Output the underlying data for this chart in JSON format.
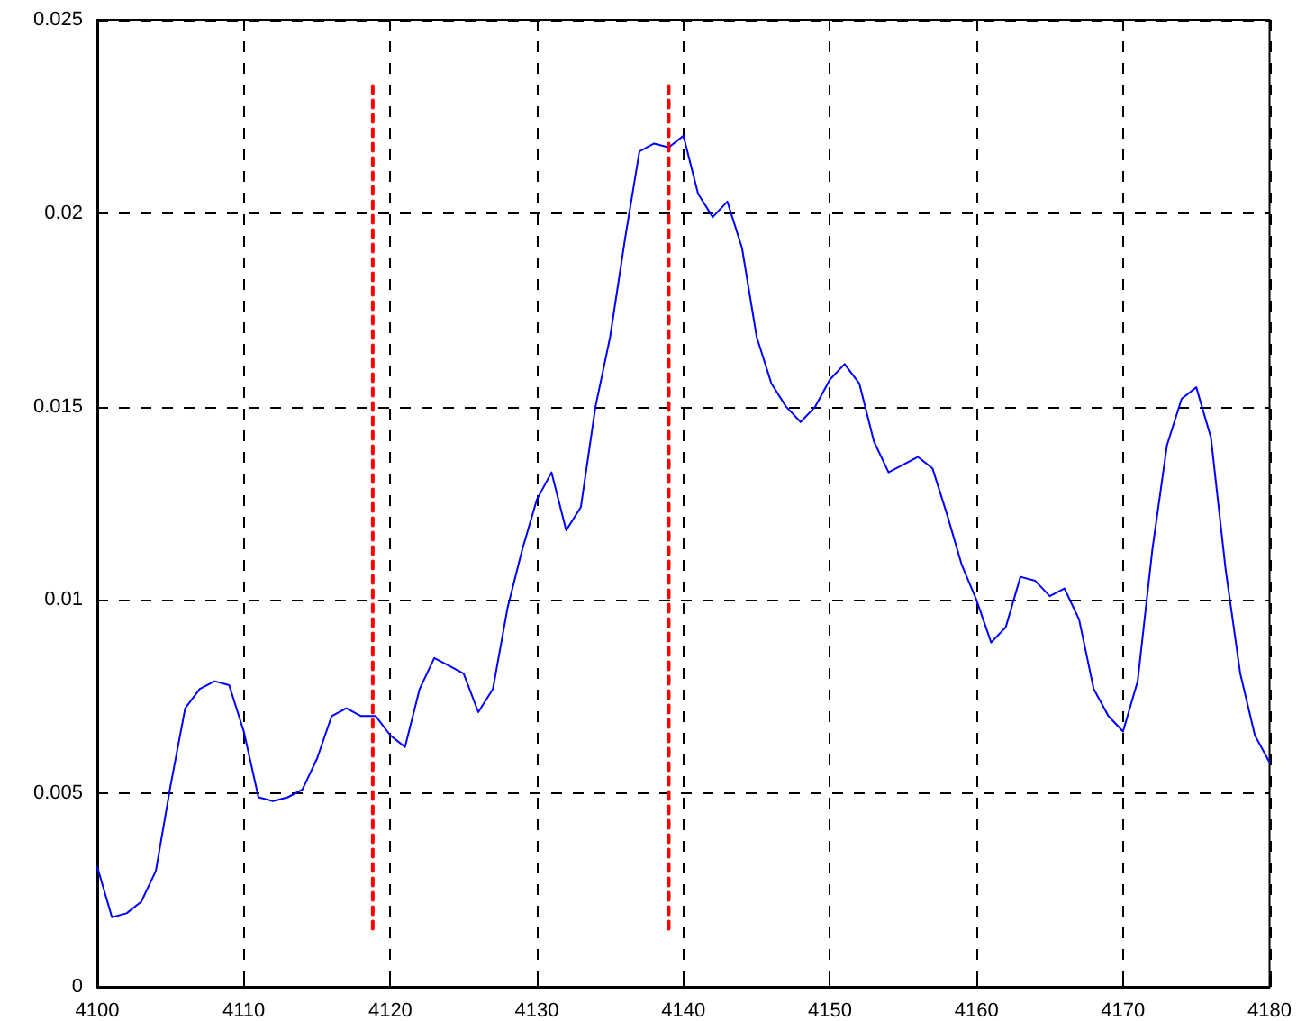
{
  "chart_data": {
    "type": "line",
    "xlim": [
      4100,
      4180
    ],
    "xticks": [
      4100,
      4110,
      4120,
      4130,
      4140,
      4150,
      4160,
      4170,
      4180
    ],
    "ylim": [
      0,
      0.025
    ],
    "yticks": [
      0,
      0.005,
      0.01,
      0.015,
      0.02,
      0.025
    ],
    "grid": true,
    "marker": "none",
    "series": [
      {
        "color": "#0000ff",
        "line_style": "solid",
        "x": [
          4100,
          4101,
          4102,
          4103,
          4104,
          4105,
          4106,
          4107,
          4108,
          4109,
          4110,
          4111,
          4112,
          4113,
          4114,
          4115,
          4116,
          4117,
          4118,
          4119,
          4120,
          4121,
          4122,
          4123,
          4124,
          4125,
          4126,
          4127,
          4128,
          4129,
          4130,
          4131,
          4132,
          4133,
          4134,
          4135,
          4136,
          4137,
          4138,
          4139,
          4140,
          4141,
          4142,
          4143,
          4144,
          4145,
          4146,
          4147,
          4148,
          4149,
          4150,
          4151,
          4152,
          4153,
          4154,
          4155,
          4156,
          4157,
          4158,
          4159,
          4160,
          4161,
          4162,
          4163,
          4164,
          4165,
          4166,
          4167,
          4168,
          4169,
          4170,
          4171,
          4172,
          4173,
          4174,
          4175,
          4176,
          4177,
          4178,
          4179,
          4180
        ],
        "values": [
          0.0031,
          0.0018,
          0.0019,
          0.0022,
          0.003,
          0.0052,
          0.0072,
          0.0077,
          0.0079,
          0.0078,
          0.0066,
          0.0049,
          0.0048,
          0.0049,
          0.0051,
          0.0059,
          0.007,
          0.0072,
          0.007,
          0.007,
          0.0065,
          0.0062,
          0.0077,
          0.0085,
          0.0083,
          0.0081,
          0.0071,
          0.0077,
          0.0098,
          0.0113,
          0.0126,
          0.0133,
          0.0118,
          0.0124,
          0.015,
          0.0168,
          0.0193,
          0.0216,
          0.0218,
          0.0217,
          0.022,
          0.0205,
          0.0199,
          0.0203,
          0.0191,
          0.0168,
          0.0156,
          0.015,
          0.0146,
          0.015,
          0.0157,
          0.0161,
          0.0156,
          0.0141,
          0.0133,
          0.0135,
          0.0137,
          0.0134,
          0.0122,
          0.0109,
          0.01,
          0.0089,
          0.0093,
          0.0106,
          0.0105,
          0.0101,
          0.0103,
          0.0095,
          0.0077,
          0.007,
          0.0066,
          0.0079,
          0.0113,
          0.014,
          0.0152,
          0.0155,
          0.0142,
          0.0108,
          0.0081,
          0.0065,
          0.0058
        ]
      },
      {
        "color": "#ff0000",
        "line_style": "dashed",
        "x": [
          4118.8,
          4118.8
        ],
        "values": [
          0.0015,
          0.0233
        ]
      },
      {
        "color": "#ff0000",
        "line_style": "dashed",
        "x": [
          4139,
          4139
        ],
        "values": [
          0.0015,
          0.0233
        ]
      }
    ]
  }
}
